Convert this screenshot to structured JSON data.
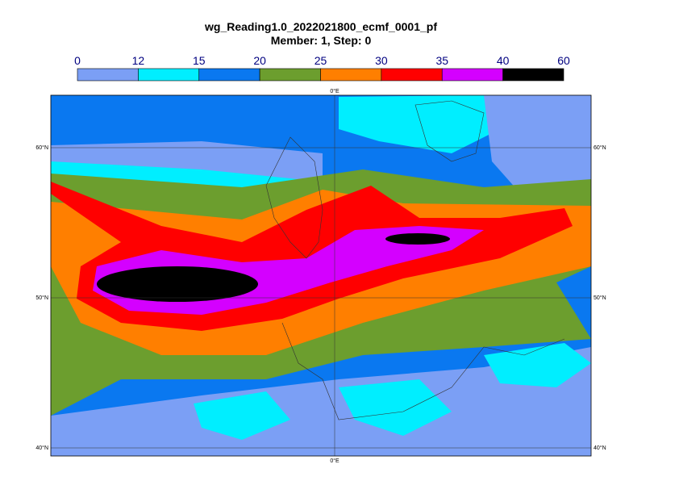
{
  "header": {
    "title": "wg_Reading1.0_2022021800_ecmf_0001_pf",
    "subtitle": "Member: 1, Step: 0"
  },
  "legend": {
    "ticks": [
      0,
      12,
      15,
      20,
      25,
      30,
      35,
      40,
      60
    ],
    "colors": [
      "#7b9ff5",
      "#00eeff",
      "#0a78f0",
      "#6c9e2e",
      "#ff7f00",
      "#ff0000",
      "#d400ff",
      "#000000"
    ]
  },
  "map": {
    "lat_labels_left": [
      "60°N",
      "50°N",
      "40°N"
    ],
    "lat_labels_right": [
      "60°N",
      "50°N",
      "40°N"
    ],
    "lon_label_top": "0°E",
    "lon_label_bottom": "0°E"
  }
}
